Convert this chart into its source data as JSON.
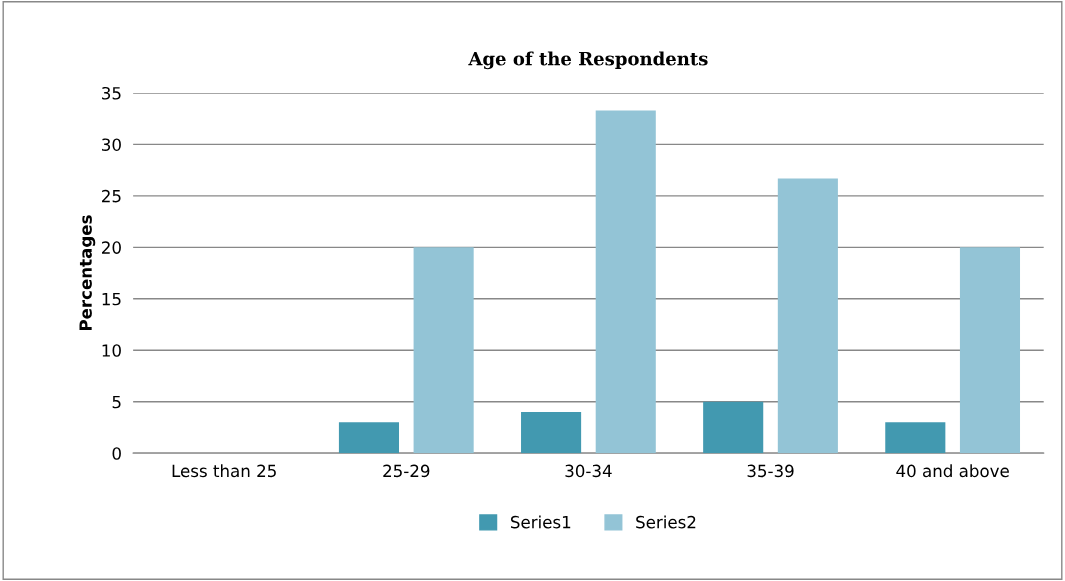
{
  "chart_data": {
    "type": "bar",
    "title": "Age of the Respondents",
    "ylabel": "Percentages",
    "categories": [
      "Less than 25",
      "25-29",
      "30-34",
      "35-39",
      "40 and above"
    ],
    "series": [
      {
        "name": "Series1",
        "color": "#4299b0",
        "values": [
          0,
          3,
          4,
          5,
          3
        ]
      },
      {
        "name": "Series2",
        "color": "#93c4d6",
        "values": [
          0,
          20,
          33.3,
          26.7,
          20
        ]
      }
    ],
    "ylim": [
      0,
      35
    ],
    "yticks": [
      0,
      5,
      10,
      15,
      20,
      25,
      30,
      35
    ],
    "grid": "y",
    "legend": "bottom"
  }
}
